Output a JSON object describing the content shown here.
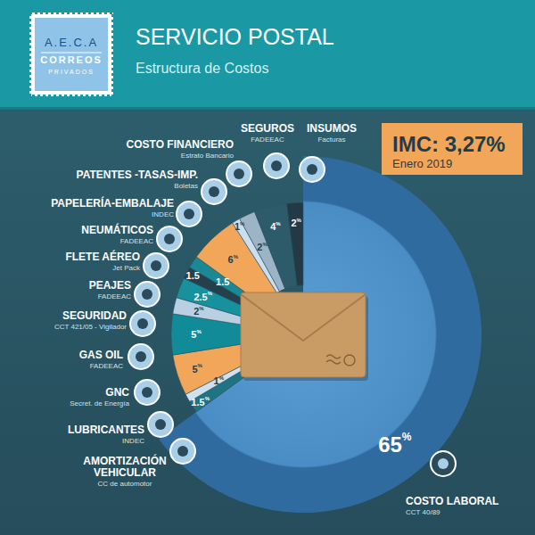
{
  "chart_data": {
    "type": "pie",
    "title": "SERVICIO POSTAL",
    "subtitle": "Estructura de Costos",
    "annotations": [
      "IMC: 3,27%",
      "Enero 2019"
    ],
    "categories": [
      "COSTO LABORAL",
      "AMORTIZACIÓN VEHICULAR",
      "LUBRICANTES",
      "GNC",
      "GAS OIL",
      "SEGURIDAD",
      "PEAJES",
      "FLETE AÉREO",
      "NEUMÁTICOS",
      "PAPELERÍA-EMBALAJE",
      "PATENTES -TASAS-IMP.",
      "COSTO FINANCIERO",
      "SEGUROS",
      "INSUMOS"
    ],
    "sources": [
      "CCT 40/89",
      "CC de automotor",
      "INDEC",
      "Secret. de Energía",
      "FADEEAC",
      "CCT 421/05 - Vigilador",
      "FADEEAC",
      "Jet Pack",
      "FADEEAC",
      "INDEC",
      "Boletas",
      "Estrato Bancario",
      "FADEEAC",
      "Facturas"
    ],
    "values": [
      65,
      1.5,
      1,
      5,
      5,
      2,
      2.5,
      1.5,
      1.5,
      6,
      1,
      2,
      4,
      2
    ],
    "value_labels": [
      "65%",
      "1.5%",
      "1%",
      "5%",
      "5%",
      "2%",
      "2.5%",
      "1.5",
      "1.5",
      "6%",
      "1%",
      "2%",
      "4%",
      "2%"
    ],
    "colors": [
      "#2f6b9f",
      "#1f7484",
      "#cfe0ef",
      "#f2a65a",
      "#128b99",
      "#b9d0e2",
      "#16919d",
      "#24404c",
      "#1b8896",
      "#f2a65a",
      "#cbdff0",
      "#9db4c6",
      "#2e5b6a",
      "#233a46"
    ],
    "data_labels": true
  },
  "logo": {
    "lines": [
      "A.E.C.A",
      "CORREOS",
      "PRIVADOS"
    ]
  }
}
